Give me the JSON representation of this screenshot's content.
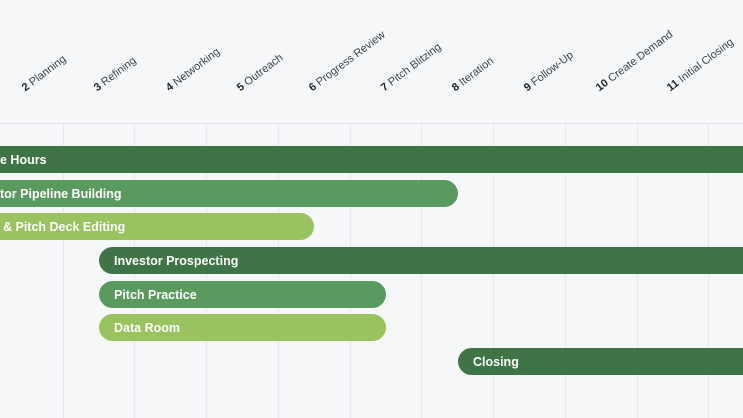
{
  "columns": [
    {
      "num": "2",
      "label": "Planning"
    },
    {
      "num": "3",
      "label": "Refining"
    },
    {
      "num": "4",
      "label": "Networking"
    },
    {
      "num": "5",
      "label": "Outreach"
    },
    {
      "num": "6",
      "label": "Progress Review"
    },
    {
      "num": "7",
      "label": "Pitch Blitzing"
    },
    {
      "num": "8",
      "label": "Iteration"
    },
    {
      "num": "9",
      "label": "Follow-Up"
    },
    {
      "num": "10",
      "label": "Create Demand"
    },
    {
      "num": "11",
      "label": "Initial Closing"
    }
  ],
  "tasks": [
    {
      "label": "e Hours",
      "color": "#3f7447"
    },
    {
      "label": "tor Pipeline Building",
      "color": "#5a9a5e"
    },
    {
      "label": "& Pitch Deck Editing",
      "color": "#98c35f"
    },
    {
      "label": "Investor Prospecting",
      "color": "#3f7447"
    },
    {
      "label": "Pitch Practice",
      "color": "#5a9a5e"
    },
    {
      "label": "Data Room",
      "color": "#98c35f"
    },
    {
      "label": "Closing",
      "color": "#3f7447"
    }
  ]
}
